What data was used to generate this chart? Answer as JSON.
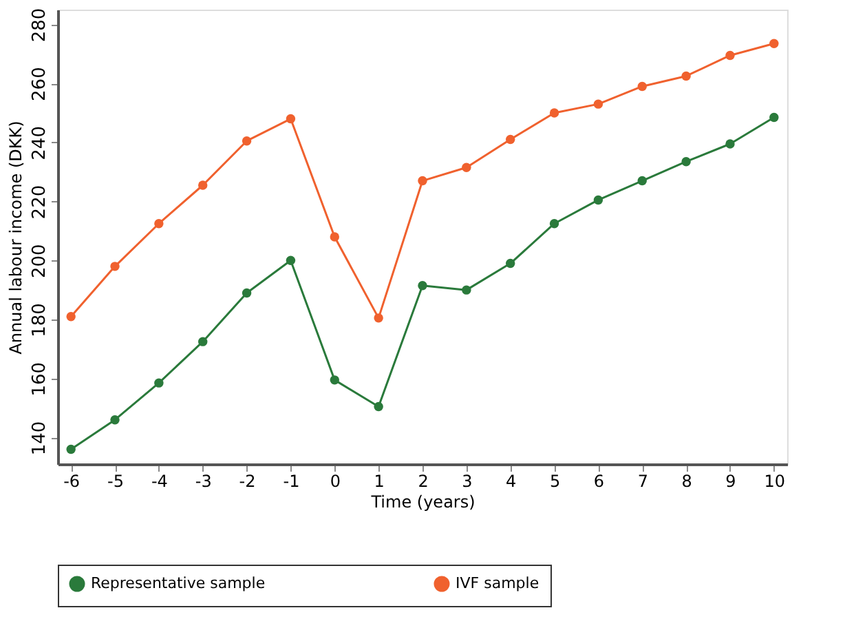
{
  "chart_data": {
    "type": "line",
    "xlabel": "Time (years)",
    "ylabel": "Annual labour income (DKK)",
    "x": [
      -6,
      -5,
      -4,
      -3,
      -2,
      -1,
      0,
      1,
      2,
      3,
      4,
      5,
      6,
      7,
      8,
      9,
      10
    ],
    "series": [
      {
        "name": "Representative sample",
        "color": "#2a7a3b",
        "values": [
          136,
          146,
          158.5,
          172.5,
          189,
          200,
          159.5,
          150.5,
          191.5,
          190,
          199,
          212.5,
          220.5,
          227,
          233.5,
          239.5,
          248.5
        ]
      },
      {
        "name": "IVF sample",
        "color": "#f0612e",
        "values": [
          181,
          198,
          212.5,
          225.5,
          240.5,
          248,
          208,
          180.5,
          227,
          231.5,
          241,
          250,
          253,
          259,
          262.5,
          269.5,
          273.5
        ]
      }
    ],
    "xlim": [
      -6.3,
      10.3
    ],
    "ylim": [
      131,
      285
    ],
    "xticks": [
      -6,
      -5,
      -4,
      -3,
      -2,
      -1,
      0,
      1,
      2,
      3,
      4,
      5,
      6,
      7,
      8,
      9,
      10
    ],
    "yticks": [
      140,
      160,
      180,
      200,
      220,
      240,
      260,
      280
    ],
    "grid": false,
    "legend": "bottom",
    "marker": "circle",
    "line_style": "solid"
  }
}
